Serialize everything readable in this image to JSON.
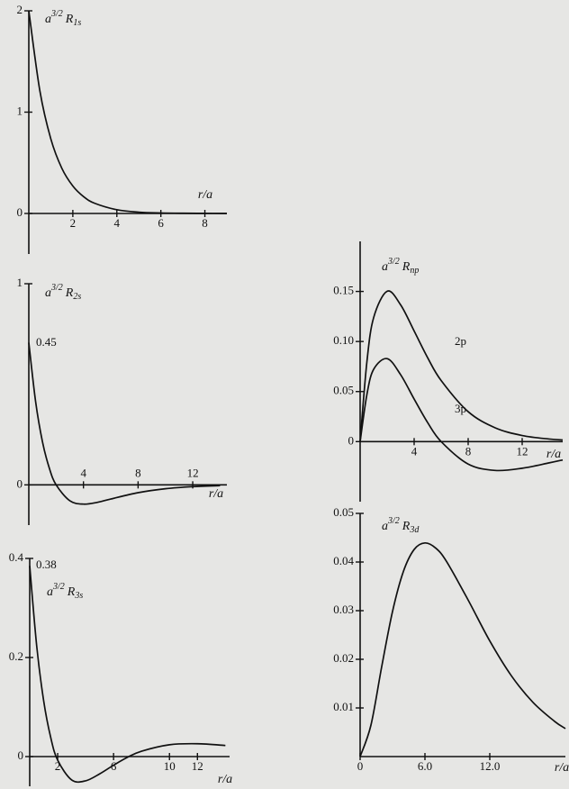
{
  "chart_data": [
    {
      "type": "line",
      "ylabel": {
        "base": "a",
        "power": "3/2",
        "symbol": "R",
        "subscript": "1s"
      },
      "xlabel": "r/a",
      "x": [
        0,
        0.5,
        1,
        1.5,
        2,
        2.5,
        3,
        4,
        5,
        6,
        7,
        8,
        9
      ],
      "values": [
        2,
        1.213,
        0.736,
        0.446,
        0.271,
        0.164,
        0.1,
        0.037,
        0.013,
        0.005,
        0.002,
        0.001,
        0
      ],
      "color": "#111111",
      "xlim": [
        0,
        9
      ],
      "ylim": [
        -0.4,
        2
      ],
      "xticks": [
        2,
        4,
        6,
        8
      ],
      "yticks": [
        0,
        1,
        2
      ]
    },
    {
      "type": "line",
      "ylabel": {
        "base": "a",
        "power": "3/2",
        "symbol": "R",
        "subscript": "2s"
      },
      "xlabel": "r/a",
      "annotations": [
        "0.45"
      ],
      "x": [
        0,
        0.5,
        1,
        1.5,
        2,
        3,
        4,
        5,
        6,
        8,
        10,
        12,
        14
      ],
      "values": [
        0.707,
        0.413,
        0.214,
        0.0835,
        0,
        -0.0789,
        -0.0957,
        -0.0871,
        -0.0704,
        -0.0388,
        -0.0191,
        -0.0088,
        -0.0039
      ],
      "color": "#111111",
      "xlim": [
        0,
        14.5
      ],
      "ylim": [
        -0.2,
        1
      ],
      "xticks": [
        4,
        8,
        12
      ],
      "yticks": [
        0,
        1
      ]
    },
    {
      "type": "line",
      "ylabel": {
        "base": "a",
        "power": "3/2",
        "symbol": "R",
        "subscript": "3s"
      },
      "xlabel": "r/a",
      "annotations": [
        "0.38"
      ],
      "x": [
        0,
        0.5,
        1,
        1.5,
        2,
        3,
        4,
        5,
        6,
        7,
        8,
        10,
        12,
        14
      ],
      "values": [
        0.385,
        0.2233,
        0.1123,
        0.0389,
        -0.0073,
        -0.0472,
        -0.0489,
        -0.035,
        -0.0174,
        -0.0014,
        0.0109,
        0.0239,
        0.0259,
        0.0224
      ],
      "color": "#111111",
      "xlim": [
        0,
        14.3
      ],
      "ylim": [
        -0.06,
        0.4
      ],
      "xticks": [
        2,
        6,
        10,
        12
      ],
      "yticks": [
        0,
        0.2,
        0.4
      ]
    },
    {
      "type": "line",
      "ylabel": {
        "base": "a",
        "power": "3/2",
        "symbol": "R",
        "subscript": "np"
      },
      "xlabel": "r/a",
      "x": [
        0,
        0.5,
        1,
        2,
        3,
        4,
        5,
        6,
        8,
        10,
        12,
        14,
        15
      ],
      "series": [
        {
          "name": "2p",
          "color": "#111111",
          "values": [
            0,
            0.0795,
            0.1238,
            0.1502,
            0.1366,
            0.1105,
            0.0838,
            0.061,
            0.0299,
            0.0138,
            0.0061,
            0.0026,
            0.0017
          ]
        },
        {
          "name": "3p",
          "color": "#111111",
          "values": [
            0,
            0.0469,
            0.0722,
            0.0829,
            0.0668,
            0.0425,
            0.019,
            0,
            -0.0224,
            -0.0288,
            -0.0266,
            -0.0212,
            -0.0183
          ]
        }
      ],
      "xlim": [
        0,
        15
      ],
      "ylim": [
        -0.06,
        0.2
      ],
      "xticks": [
        4,
        8,
        12
      ],
      "yticks": [
        0,
        0.05,
        {
          "value": 0.1,
          "label": "0.10"
        },
        0.15
      ]
    },
    {
      "type": "line",
      "ylabel": {
        "base": "a",
        "power": "3/2",
        "symbol": "R",
        "subscript": "3d"
      },
      "xlabel": "r/a",
      "x": [
        0,
        1,
        2,
        3,
        4,
        5,
        6,
        7,
        8,
        10,
        12,
        14,
        16,
        18,
        19
      ],
      "values": [
        0,
        0.00646,
        0.01852,
        0.02985,
        0.03803,
        0.04258,
        0.04392,
        0.04286,
        0.04011,
        0.03218,
        0.02378,
        0.01661,
        0.01115,
        0.00724,
        0.00576
      ],
      "color": "#111111",
      "xlim": [
        0,
        19
      ],
      "ylim": [
        0,
        0.05
      ],
      "xticks": [
        0,
        {
          "value": 6,
          "label": "6.0"
        },
        {
          "value": 12,
          "label": "12.0"
        }
      ],
      "yticks": [
        0.01,
        0.02,
        0.03,
        0.04,
        0.05
      ]
    }
  ]
}
